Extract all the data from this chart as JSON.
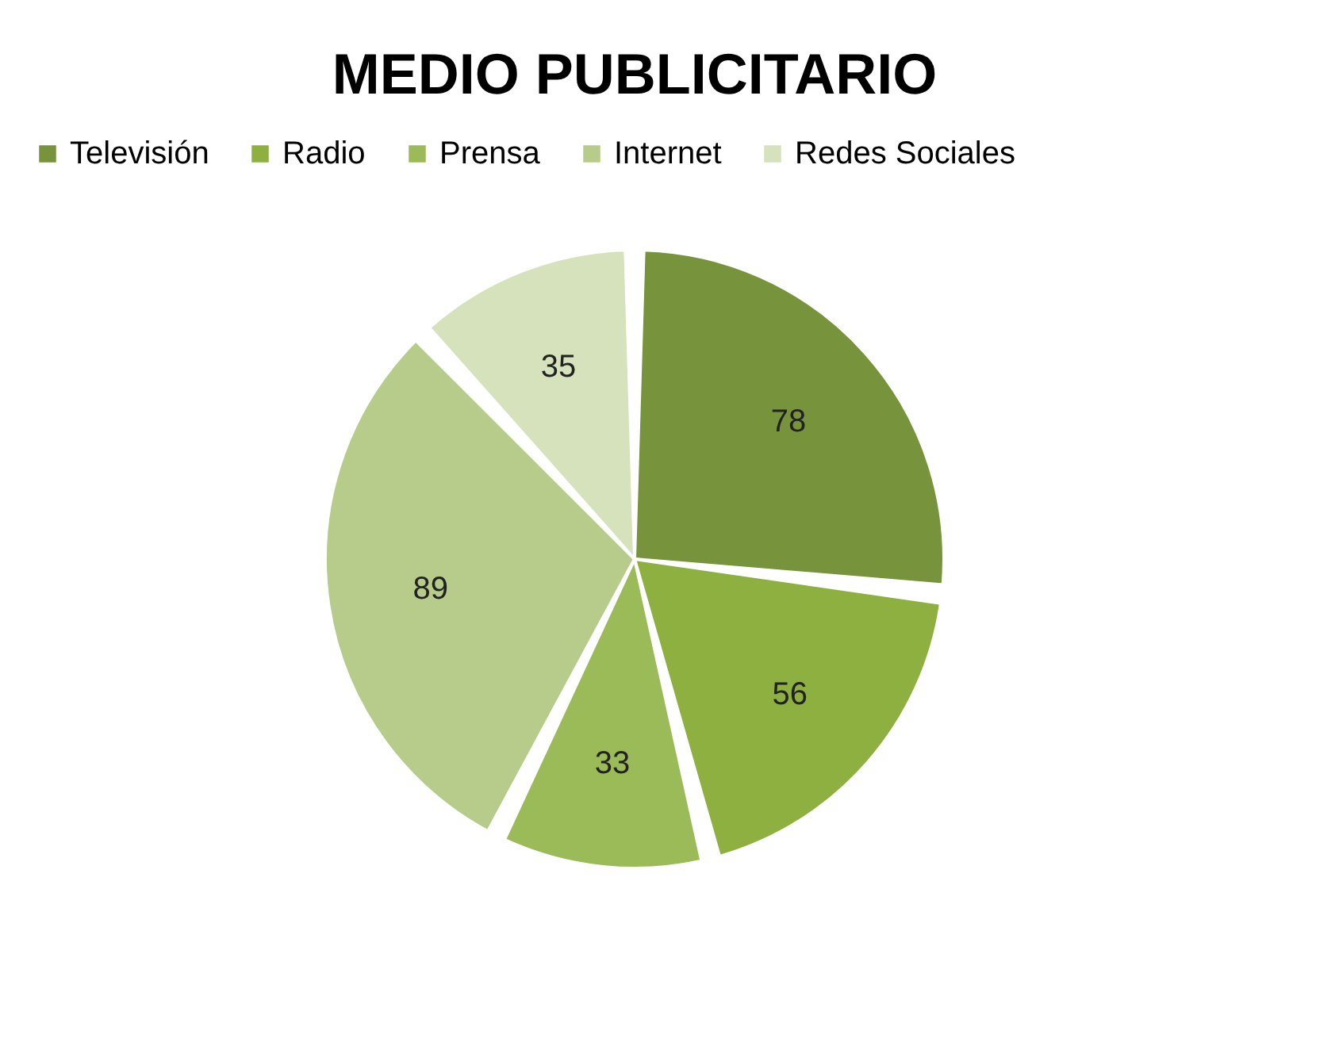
{
  "chart_data": {
    "type": "pie",
    "title": "MEDIO PUBLICITARIO",
    "categories": [
      "Televisión",
      "Radio",
      "Prensa",
      "Internet",
      "Redes Sociales"
    ],
    "values": [
      78,
      56,
      33,
      89,
      35
    ],
    "colors": [
      "#77933c",
      "#8db040",
      "#9bbb59",
      "#b7cc8a",
      "#d5e2bb"
    ],
    "data_labels": true,
    "legend": "top"
  }
}
